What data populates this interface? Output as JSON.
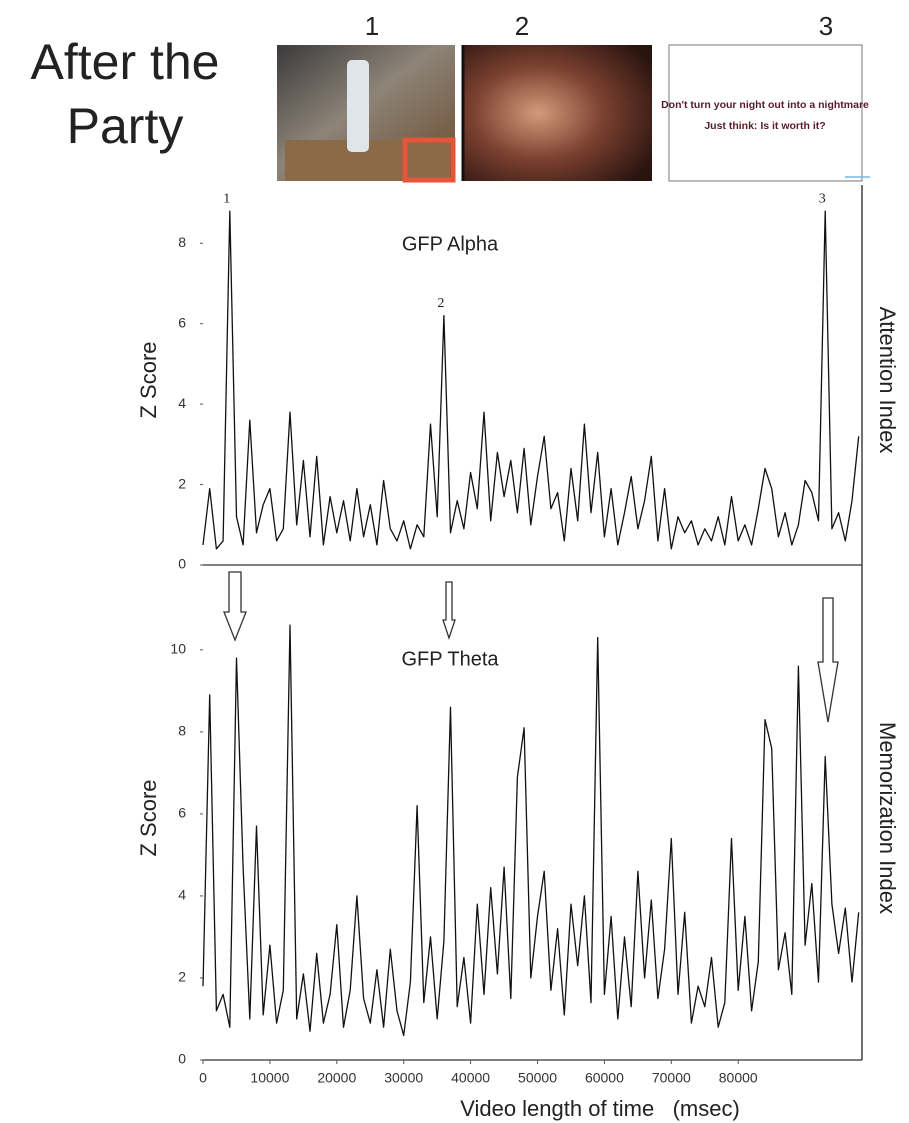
{
  "header": {
    "title": "After the Party"
  },
  "frames": [
    {
      "label": "1"
    },
    {
      "label": "2"
    },
    {
      "label": "3",
      "lines": [
        "Don't turn your night out into a nightmare",
        "Just think: Is it worth it?"
      ]
    }
  ],
  "chart_data": [
    {
      "type": "line",
      "title": "GFP Alpha",
      "ylabel": "Z Score",
      "side_label": "Attention Index",
      "color": "#111111",
      "xlim": [
        0,
        98500
      ],
      "ylim": [
        0,
        9.2
      ],
      "yticks": [
        0,
        2,
        4,
        6,
        8
      ],
      "annotations": [
        {
          "text": "1",
          "x": 4000,
          "y": 8.8
        },
        {
          "text": "2",
          "x": 36000,
          "y": 6.2
        },
        {
          "text": "3",
          "x": 93000,
          "y": 8.8
        }
      ],
      "x": [
        0,
        1000,
        2000,
        3000,
        4000,
        5000,
        6000,
        7000,
        8000,
        9000,
        10000,
        11000,
        12000,
        13000,
        14000,
        15000,
        16000,
        17000,
        18000,
        19000,
        20000,
        21000,
        22000,
        23000,
        24000,
        25000,
        26000,
        27000,
        28000,
        29000,
        30000,
        31000,
        32000,
        33000,
        34000,
        35000,
        36000,
        37000,
        38000,
        39000,
        40000,
        41000,
        42000,
        43000,
        44000,
        45000,
        46000,
        47000,
        48000,
        49000,
        50000,
        51000,
        52000,
        53000,
        54000,
        55000,
        56000,
        57000,
        58000,
        59000,
        60000,
        61000,
        62000,
        63000,
        64000,
        65000,
        66000,
        67000,
        68000,
        69000,
        70000,
        71000,
        72000,
        73000,
        74000,
        75000,
        76000,
        77000,
        78000,
        79000,
        80000,
        81000,
        82000,
        83000,
        84000,
        85000,
        86000,
        87000,
        88000,
        89000,
        90000,
        91000,
        92000,
        93000,
        94000,
        95000,
        96000,
        97000,
        98000
      ],
      "values": [
        0.5,
        1.9,
        0.4,
        0.6,
        8.8,
        1.2,
        0.5,
        3.6,
        0.8,
        1.5,
        1.9,
        0.6,
        0.9,
        3.8,
        1.0,
        2.6,
        0.7,
        2.7,
        0.5,
        1.7,
        0.8,
        1.6,
        0.6,
        1.9,
        0.7,
        1.5,
        0.5,
        2.1,
        0.9,
        0.6,
        1.1,
        0.4,
        1.0,
        0.7,
        3.5,
        1.2,
        6.2,
        0.8,
        1.6,
        0.9,
        2.3,
        1.4,
        3.8,
        1.1,
        2.8,
        1.7,
        2.6,
        1.3,
        2.9,
        1.0,
        2.2,
        3.2,
        1.4,
        1.8,
        0.6,
        2.4,
        1.1,
        3.5,
        1.3,
        2.8,
        0.7,
        1.9,
        0.5,
        1.3,
        2.2,
        0.9,
        1.6,
        2.7,
        0.6,
        1.9,
        0.4,
        1.2,
        0.8,
        1.1,
        0.5,
        0.9,
        0.6,
        1.2,
        0.5,
        1.7,
        0.6,
        1.0,
        0.5,
        1.4,
        2.4,
        1.9,
        0.7,
        1.3,
        0.5,
        1.0,
        2.1,
        1.8,
        1.1,
        8.8,
        0.9,
        1.3,
        0.6,
        1.6,
        3.2
      ]
    },
    {
      "type": "line",
      "title": "GFP Theta",
      "ylabel": "Z Score",
      "side_label": "Memorization Index",
      "xlabel": "Video length of time   (msec)",
      "color": "#111111",
      "xlim": [
        0,
        98500
      ],
      "ylim": [
        0,
        11.8
      ],
      "yticks": [
        0,
        2,
        4,
        6,
        8,
        10
      ],
      "xticks": [
        0,
        10000,
        20000,
        30000,
        40000,
        50000,
        60000,
        70000,
        80000
      ],
      "x": [
        0,
        1000,
        2000,
        3000,
        4000,
        5000,
        6000,
        7000,
        8000,
        9000,
        10000,
        11000,
        12000,
        13000,
        14000,
        15000,
        16000,
        17000,
        18000,
        19000,
        20000,
        21000,
        22000,
        23000,
        24000,
        25000,
        26000,
        27000,
        28000,
        29000,
        30000,
        31000,
        32000,
        33000,
        34000,
        35000,
        36000,
        37000,
        38000,
        39000,
        40000,
        41000,
        42000,
        43000,
        44000,
        45000,
        46000,
        47000,
        48000,
        49000,
        50000,
        51000,
        52000,
        53000,
        54000,
        55000,
        56000,
        57000,
        58000,
        59000,
        60000,
        61000,
        62000,
        63000,
        64000,
        65000,
        66000,
        67000,
        68000,
        69000,
        70000,
        71000,
        72000,
        73000,
        74000,
        75000,
        76000,
        77000,
        78000,
        79000,
        80000,
        81000,
        82000,
        83000,
        84000,
        85000,
        86000,
        87000,
        88000,
        89000,
        90000,
        91000,
        92000,
        93000,
        94000,
        95000,
        96000,
        97000,
        98000
      ],
      "values": [
        1.8,
        8.9,
        1.2,
        1.6,
        0.8,
        9.8,
        4.7,
        1.0,
        5.7,
        1.1,
        2.8,
        0.9,
        1.7,
        10.6,
        1.0,
        2.1,
        0.7,
        2.6,
        0.9,
        1.6,
        3.3,
        0.8,
        1.7,
        4.0,
        1.5,
        0.9,
        2.2,
        0.8,
        2.7,
        1.2,
        0.6,
        1.9,
        6.2,
        1.4,
        3.0,
        1.0,
        2.9,
        8.6,
        1.3,
        2.5,
        0.9,
        3.8,
        1.6,
        4.2,
        2.1,
        4.7,
        1.5,
        6.9,
        8.1,
        2.0,
        3.5,
        4.6,
        1.7,
        3.2,
        1.1,
        3.8,
        2.3,
        4.0,
        1.4,
        10.3,
        1.6,
        3.5,
        1.0,
        3.0,
        1.3,
        4.6,
        2.0,
        3.9,
        1.5,
        2.7,
        5.4,
        1.6,
        3.6,
        0.9,
        1.8,
        1.3,
        2.5,
        0.8,
        1.4,
        5.4,
        1.7,
        3.5,
        1.2,
        2.4,
        8.3,
        7.6,
        2.2,
        3.1,
        1.6,
        9.6,
        2.8,
        4.3,
        1.9,
        7.4,
        3.8,
        2.6,
        3.7,
        1.9,
        3.6
      ]
    }
  ]
}
